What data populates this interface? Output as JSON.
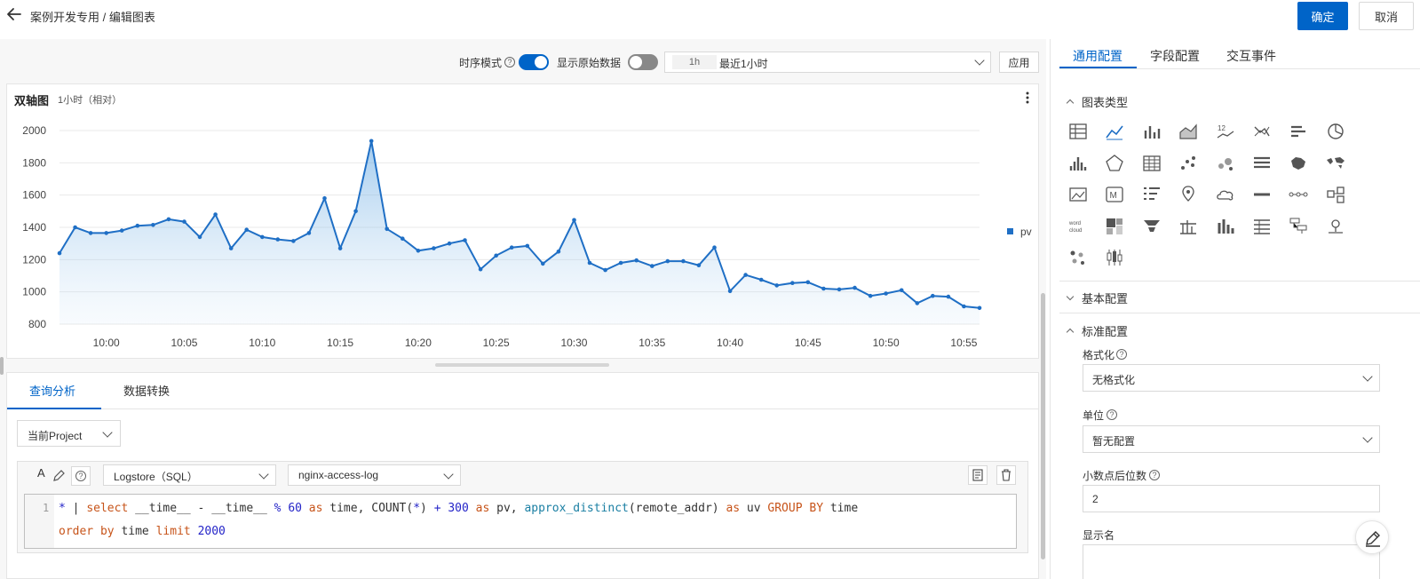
{
  "header": {
    "breadcrumb": "案例开发专用 / 编辑图表",
    "confirm_label": "确定",
    "cancel_label": "取消"
  },
  "controls": {
    "timeseries_label": "时序模式",
    "timeseries_on": true,
    "raw_data_label": "显示原始数据",
    "raw_data_on": false,
    "time_tag": "1h",
    "time_value": "最近1小时",
    "apply_label": "应用"
  },
  "chart_card": {
    "title": "双轴图",
    "subtitle": "1小时（相对）"
  },
  "chart_data": {
    "type": "area",
    "title": "双轴图",
    "ylim": [
      800,
      2000
    ],
    "yticks": [
      800,
      1000,
      1200,
      1400,
      1600,
      1800,
      2000
    ],
    "x_minutes_first": "09:57",
    "x_ticks": [
      "10:00",
      "10:05",
      "10:10",
      "10:15",
      "10:20",
      "10:25",
      "10:30",
      "10:35",
      "10:40",
      "10:45",
      "10:50",
      "10:55"
    ],
    "grid": true,
    "legend_position": "right",
    "color": "#1f6fc5",
    "series": [
      {
        "name": "pv",
        "values": [
          1240,
          1400,
          1365,
          1365,
          1380,
          1410,
          1415,
          1450,
          1435,
          1340,
          1480,
          1270,
          1385,
          1340,
          1325,
          1315,
          1365,
          1580,
          1270,
          1500,
          1935,
          1390,
          1330,
          1255,
          1270,
          1300,
          1320,
          1140,
          1225,
          1275,
          1285,
          1175,
          1250,
          1445,
          1180,
          1135,
          1180,
          1195,
          1160,
          1190,
          1190,
          1165,
          1275,
          1005,
          1105,
          1075,
          1040,
          1055,
          1060,
          1020,
          1015,
          1025,
          975,
          990,
          1010,
          930,
          975,
          970,
          910,
          900
        ]
      }
    ]
  },
  "query": {
    "tabs": [
      "查询分析",
      "数据转换"
    ],
    "project_label": "当前Project",
    "logstore_type": "Logstore（SQL）",
    "logstore_name": "nginx-access-log",
    "line_no": "1"
  },
  "right": {
    "tabs": [
      "通用配置",
      "字段配置",
      "交互事件"
    ],
    "sec_chart_type": "图表类型",
    "sec_basic": "基本配置",
    "sec_standard": "标准配置",
    "format_label": "格式化",
    "format_value": "无格式化",
    "unit_label": "单位",
    "unit_value": "暂无配置",
    "decimal_label": "小数点后位数",
    "decimal_value": "2",
    "display_name_label": "显示名",
    "icon_names": [
      "table-icon",
      "line-chart-icon",
      "bar-chart-icon",
      "area-chart-icon",
      "stat-number-icon",
      "flow-chart-icon",
      "bar-list-icon",
      "pie-chart-icon",
      "histogram-icon",
      "radar-icon",
      "grid-table-icon",
      "scatter-icon",
      "bubble-icon",
      "progress-list-icon",
      "china-map-icon",
      "world-map-icon",
      "image-icon",
      "markdown-icon",
      "sorted-list-icon",
      "location-map-icon",
      "cloud-map-icon",
      "single-bar-icon",
      "step-icon",
      "topology-icon",
      "word-cloud-icon",
      "treemap-icon",
      "funnel-icon",
      "column-grid-icon",
      "stacked-bar-icon",
      "list-table-icon",
      "tree-icon",
      "pin-map-icon",
      "dot-matrix-icon",
      "candlestick-icon"
    ]
  }
}
